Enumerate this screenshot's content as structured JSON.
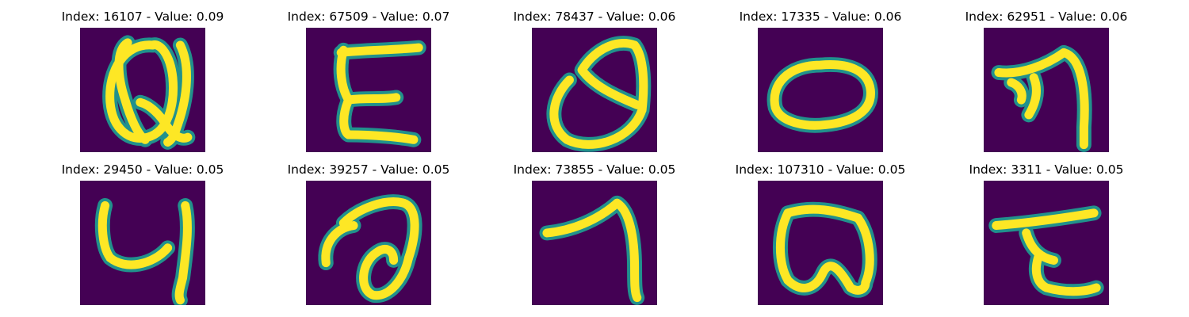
{
  "colors": {
    "background": "#440154",
    "stroke_core": "#fde725",
    "stroke_edge": "#21918c"
  },
  "panels": [
    {
      "title": "Index: 16107 - Value: 0.09",
      "glyph": "letter-Q-like"
    },
    {
      "title": "Index: 67509 - Value: 0.07",
      "glyph": "letter-E"
    },
    {
      "title": "Index: 78437 - Value: 0.06",
      "glyph": "curl-a-like"
    },
    {
      "title": "Index: 17335 - Value: 0.06",
      "glyph": "letter-O-ellipse"
    },
    {
      "title": "Index: 62951 - Value: 0.06",
      "glyph": "arrow-seven-like"
    },
    {
      "title": "Index: 29450 - Value: 0.05",
      "glyph": "letter-y-like"
    },
    {
      "title": "Index: 39257 - Value: 0.05",
      "glyph": "loop-a-like"
    },
    {
      "title": "Index: 73855 - Value: 0.05",
      "glyph": "digit-7-like"
    },
    {
      "title": "Index: 107310 - Value: 0.05",
      "glyph": "blob-a-like"
    },
    {
      "title": "Index: 3311 - Value: 0.05",
      "glyph": "letter-t-like"
    }
  ]
}
